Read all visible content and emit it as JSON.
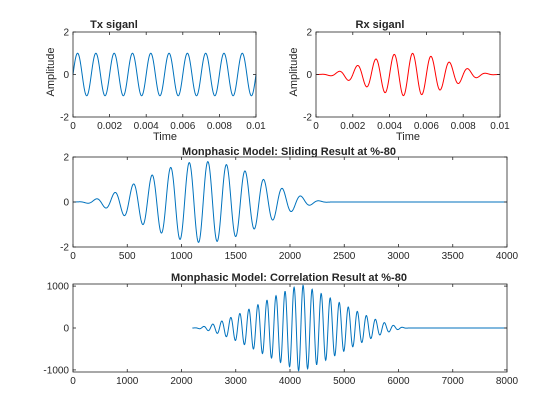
{
  "figure": {
    "background": "#ffffff"
  },
  "chart_data": [
    {
      "id": "tx",
      "type": "line",
      "title": "Tx siganl",
      "xlabel": "Time",
      "ylabel": "Amplitude",
      "xlim": [
        0,
        0.01
      ],
      "ylim": [
        -2,
        2
      ],
      "xticks": [
        0,
        0.002,
        0.004,
        0.006,
        0.008,
        0.01
      ],
      "xtick_labels": [
        "0",
        "0.002",
        "0.004",
        "0.006",
        "0.008",
        "0.01"
      ],
      "yticks": [
        -2,
        0,
        2
      ],
      "ytick_labels": [
        "-2",
        "0",
        "2"
      ],
      "series": [
        {
          "color": "#0072bd",
          "signal": {
            "kind": "sine",
            "amplitude": 1,
            "cycles": 10,
            "envelope": "constant"
          }
        }
      ]
    },
    {
      "id": "rx",
      "type": "line",
      "title": "Rx siganl",
      "xlabel": "Time",
      "ylabel": "Amplitude",
      "xlim": [
        0,
        0.01
      ],
      "ylim": [
        -2,
        2
      ],
      "xticks": [
        0,
        0.002,
        0.004,
        0.006,
        0.008,
        0.01
      ],
      "xtick_labels": [
        "0",
        "0.002",
        "0.004",
        "0.006",
        "0.008",
        "0.01"
      ],
      "yticks": [
        -2,
        0,
        2
      ],
      "ytick_labels": [
        "-2",
        "0",
        "2"
      ],
      "series": [
        {
          "color": "#ff0000",
          "signal": {
            "kind": "sine",
            "amplitude": 1,
            "cycles": 10,
            "envelope": "hann"
          }
        }
      ]
    },
    {
      "id": "sliding",
      "type": "line",
      "title": "Monphasic Model: Sliding Result at %-80",
      "xlabel": "",
      "ylabel": "",
      "xlim": [
        0,
        4000
      ],
      "ylim": [
        -2,
        2
      ],
      "xticks": [
        0,
        500,
        1000,
        1500,
        2000,
        2500,
        3000,
        3500,
        4000
      ],
      "xtick_labels": [
        "0",
        "500",
        "1000",
        "1500",
        "2000",
        "2500",
        "3000",
        "3500",
        "4000"
      ],
      "yticks": [
        -2,
        0,
        2
      ],
      "ytick_labels": [
        "-2",
        "0",
        "2"
      ],
      "series": [
        {
          "color": "#0072bd",
          "signal": {
            "kind": "sine",
            "amplitude": 1.8,
            "cycles": 14,
            "x_start": 0,
            "x_end": 2400,
            "envelope": "hann",
            "flat_to": 4000
          }
        }
      ]
    },
    {
      "id": "correlation",
      "type": "line",
      "title": "Monphasic Model: Correlation Result at %-80",
      "xlabel": "",
      "ylabel": "",
      "xlim": [
        0,
        8000
      ],
      "ylim": [
        -1050,
        1050
      ],
      "xticks": [
        0,
        1000,
        2000,
        3000,
        4000,
        5000,
        6000,
        7000,
        8000
      ],
      "xtick_labels": [
        "0",
        "1000",
        "2000",
        "3000",
        "4000",
        "5000",
        "6000",
        "7000",
        "8000"
      ],
      "yticks": [
        -1000,
        0,
        1000
      ],
      "ytick_labels": [
        "-1000",
        "0",
        "1000"
      ],
      "series": [
        {
          "color": "#0072bd",
          "signal": {
            "kind": "sine",
            "amplitude": 1040,
            "cycles": 24,
            "x_start": 2200,
            "x_end": 6200,
            "envelope": "triangular-hann",
            "flat_to": 8000
          }
        }
      ]
    }
  ]
}
